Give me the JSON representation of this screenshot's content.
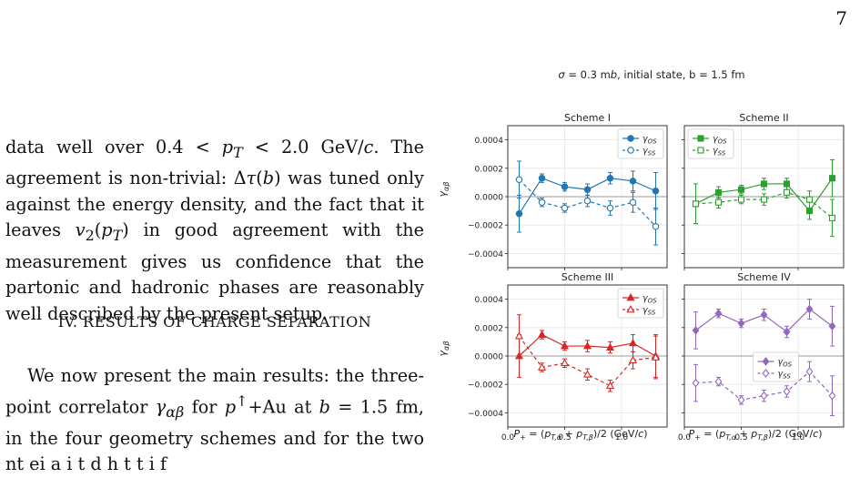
{
  "page_number": "7",
  "text": {
    "para1_html": "data well over 0.4 &lt; <i>p<sub>T</sub></i> &lt; 2.0 GeV/<i>c</i>. The agreement is non-trivial: Δ<i>τ</i>(<i>b</i>) was tuned only against the energy density, and the fact that it leaves <i>v</i><sub>2</sub>(<i>p<sub>T</sub></i>) in good agreement with the measurement gives us confidence that the partonic and hadronic phases are reasonably well described by the present setup.",
    "heading": "IV.   RESULTS OF CHARGE SEPARATION",
    "para2_html": "We now present the main results: the three-point correlator <i>γ<sub>αβ</sub></i> for <i>p</i><sup>↑</sup>+Au at <i>b</i> = 1.5 fm, in the four geometry schemes and for the two nt  ei   a i  t   d   h t  t  i  f"
  },
  "figure": {
    "suptitle": "σ = 0.3 mb, initial state, b = 1.5 fm",
    "ylabel": "γαβ",
    "xlabel": "P+ = (pT,α + pT,β)/2 (GeV/c)",
    "legend_os": "γOS",
    "legend_ss": "γSS"
  },
  "chart_data": {
    "type": "line",
    "xlim": [
      0.0,
      1.4
    ],
    "ylim": [
      -0.0005,
      0.0005
    ],
    "xticks": [
      "0.0",
      "0.5",
      "1.0"
    ],
    "yticks": [
      "−0.0004",
      "−0.0002",
      "0.0000",
      "0.0002",
      "0.0004"
    ],
    "x": [
      0.1,
      0.3,
      0.5,
      0.7,
      0.9,
      1.1,
      1.3
    ],
    "grid": true,
    "panels": [
      {
        "title": "Scheme I",
        "color": "#1f77b4",
        "marker": "circle",
        "legend": "top-right",
        "os": [
          -0.00012,
          0.00013,
          7e-05,
          5e-05,
          0.00013,
          0.00011,
          4e-05
        ],
        "os_err": [
          0.00013,
          3e-05,
          3e-05,
          4e-05,
          4e-05,
          7e-05,
          0.00013
        ],
        "ss": [
          0.00012,
          -4e-05,
          -8e-05,
          -3e-05,
          -8e-05,
          -4e-05,
          -0.00021
        ],
        "ss_err": [
          0.00013,
          3e-05,
          3e-05,
          4e-05,
          5e-05,
          7e-05,
          0.00013
        ]
      },
      {
        "title": "Scheme II",
        "color": "#2ca02c",
        "marker": "square",
        "legend": "top-left",
        "os": [
          -5e-05,
          3e-05,
          5e-05,
          9e-05,
          9e-05,
          -0.0001,
          0.00013
        ],
        "os_err": [
          0.00014,
          4e-05,
          3e-05,
          4e-05,
          4e-05,
          6e-05,
          0.00013
        ],
        "ss": [
          -5e-05,
          -4e-05,
          -2e-05,
          -2e-05,
          3e-05,
          -2e-05,
          -0.00015
        ],
        "ss_err": [
          0.00014,
          4e-05,
          3e-05,
          4e-05,
          4e-05,
          6e-05,
          0.00013
        ]
      },
      {
        "title": "Scheme III",
        "color": "#d62728",
        "marker": "triangle",
        "legend": "top-right",
        "os": [
          0.0,
          0.00015,
          7e-05,
          7e-05,
          6e-05,
          9e-05,
          0.0
        ],
        "os_err": [
          0.00015,
          3e-05,
          3e-05,
          4e-05,
          4e-05,
          6e-05,
          0.00015
        ],
        "ss": [
          0.00014,
          -8e-05,
          -5e-05,
          -0.00013,
          -0.00021,
          -3e-05,
          -1e-05
        ],
        "ss_err": [
          0.00015,
          3e-05,
          3e-05,
          4e-05,
          4e-05,
          6e-05,
          0.00015
        ]
      },
      {
        "title": "Scheme IV",
        "color": "#9467bd",
        "marker": "diamond",
        "legend": "center",
        "os": [
          0.00018,
          0.0003,
          0.00023,
          0.00029,
          0.00017,
          0.00033,
          0.00021
        ],
        "os_err": [
          0.00013,
          3e-05,
          3e-05,
          4e-05,
          4e-05,
          7e-05,
          0.00014
        ],
        "ss": [
          -0.00019,
          -0.00018,
          -0.00031,
          -0.00028,
          -0.00025,
          -0.00011,
          -0.00028
        ],
        "ss_err": [
          0.00013,
          3e-05,
          3e-05,
          4e-05,
          4e-05,
          7e-05,
          0.00014
        ]
      }
    ]
  }
}
